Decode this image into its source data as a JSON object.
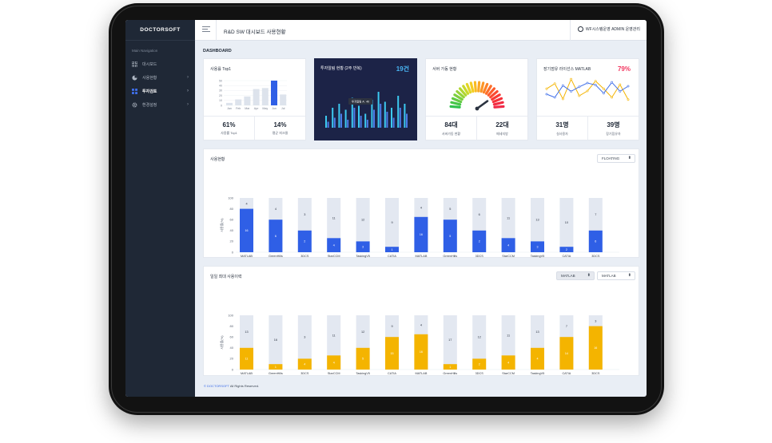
{
  "app": {
    "logo": "DOCTORSOFT",
    "page_title": "R&D SW 대시보드 사용현황",
    "user_label": "WF시스템운영 ADMIN 운영관리",
    "footer_brand": "© DOCTORSOFT",
    "footer_rest": " All Rights Reserved."
  },
  "sidebar": {
    "caption": "Main Navigation",
    "items": [
      {
        "label": "대시보드",
        "icon": "grid-icon",
        "chevron": false,
        "active": false
      },
      {
        "label": "사용현황",
        "icon": "pie-icon",
        "chevron": true,
        "active": false
      },
      {
        "label": "투자검토",
        "icon": "squares-icon",
        "chevron": true,
        "active": true
      },
      {
        "label": "환경설정",
        "icon": "gear-icon",
        "chevron": true,
        "active": false
      }
    ]
  },
  "dashboard_label": "DASHBOARD",
  "cards": {
    "top1": {
      "title": "사용률 Top1",
      "stats": [
        {
          "value": "61%",
          "label": "사용률 Top1"
        },
        {
          "value": "14%",
          "label": "평균 피크율"
        }
      ]
    },
    "invest": {
      "title": "투자알림 현황 (2주 반복)",
      "count": "19건",
      "tooltip": "투자알림 A : 40"
    },
    "server": {
      "title": "서버 가동 현황",
      "stats": [
        {
          "value": "84대",
          "label": "서버가동 현황"
        },
        {
          "value": "22대",
          "label": "메세지방"
        }
      ]
    },
    "license": {
      "title": "장기점유 라이선스 MATLAB",
      "percent": "79%",
      "stats": [
        {
          "value": "31명",
          "label": "실사용자"
        },
        {
          "value": "39명",
          "label": "장기점유자"
        }
      ]
    }
  },
  "usage_panel": {
    "title": "사용현황",
    "select": "FLOATING"
  },
  "daily_panel": {
    "title": "일일 최대 사용이력",
    "select1": "MATLAB",
    "select2": "MATLAB"
  },
  "chart_data": [
    {
      "type": "bar",
      "title": "사용률 Top1",
      "categories": [
        "Jan",
        "Feb",
        "Mar",
        "Apr",
        "May",
        "Jun",
        "Jul"
      ],
      "values": [
        5,
        12,
        18,
        33,
        35,
        50,
        22
      ],
      "ylim": [
        0,
        50
      ],
      "yticks": [
        0,
        10,
        20,
        30,
        40,
        50
      ],
      "highlight_index": 5
    },
    {
      "type": "bar",
      "title": "투자알림 현황 (2주 반복)",
      "series": [
        {
          "name": "",
          "values": [
            12,
            20,
            24,
            18,
            30,
            22,
            14,
            28,
            36,
            26,
            20,
            32,
            24
          ]
        },
        {
          "name": "",
          "values": [
            6,
            10,
            14,
            8,
            20,
            12,
            8,
            18,
            24,
            16,
            10,
            20,
            14
          ]
        }
      ]
    },
    {
      "type": "gauge",
      "title": "서버 가동 현황",
      "value_fraction": 0.8
    },
    {
      "type": "line",
      "title": "장기점유 라이선스 MATLAB",
      "series": [
        {
          "name": "",
          "values": [
            62,
            78,
            30,
            92,
            40,
            55,
            86,
            62,
            35,
            75,
            28
          ]
        },
        {
          "name": "",
          "values": [
            45,
            35,
            72,
            54,
            68,
            80,
            74,
            48,
            82,
            54,
            70
          ]
        }
      ]
    },
    {
      "type": "bar",
      "title": "사용현황",
      "ylabel": "사용률(%)",
      "ylim": [
        0,
        100
      ],
      "yticks": [
        0,
        20,
        40,
        60,
        80,
        100
      ],
      "categories": [
        "MATLAB",
        "GreenHills",
        "3DCS",
        "StarCCM",
        "TaskingV5",
        "CATIA",
        "MATLAB",
        "GreenHills",
        "3DCS",
        "StarCCM",
        "TaskingV5",
        "CATIA",
        "3DCS"
      ],
      "values": [
        80,
        60,
        40,
        26,
        20,
        10,
        65,
        60,
        40,
        26,
        20,
        10,
        40
      ],
      "value_labels": [
        "16",
        "6",
        "2",
        "4",
        "3",
        "1",
        "16",
        "5",
        "2",
        "4",
        "3",
        "2",
        "6"
      ],
      "remainder_labels": [
        "4",
        "4",
        "3",
        "11",
        "12",
        "9",
        "4",
        "5",
        "6",
        "11",
        "13",
        "10",
        "7"
      ]
    },
    {
      "type": "bar",
      "title": "일일 최대 사용이력",
      "ylabel": "사용률(%)",
      "ylim": [
        0,
        100
      ],
      "yticks": [
        0,
        20,
        40,
        60,
        80,
        100
      ],
      "categories": [
        "MATLAB",
        "GreenHills",
        "3DCS",
        "StarCCM",
        "TaskingV5",
        "CATIA",
        "MATLAB",
        "GreenHills",
        "3DCS",
        "StarCCM",
        "TaskingV5",
        "CATIA",
        "3DCS"
      ],
      "values": [
        40,
        10,
        20,
        26,
        40,
        60,
        65,
        10,
        20,
        26,
        40,
        60,
        80
      ],
      "value_labels": [
        "11",
        "1",
        "4",
        "4",
        "5",
        "15",
        "16",
        "1",
        "2",
        "4",
        "4",
        "14",
        "16"
      ],
      "remainder_labels": [
        "13",
        "16",
        "3",
        "11",
        "12",
        "9",
        "4",
        "17",
        "12",
        "11",
        "13",
        "7",
        "3"
      ]
    }
  ],
  "colors": {
    "sidebar": "#1f2836",
    "blue": "#2f5fe6",
    "orange": "#f4b400",
    "track": "#e3e8f1",
    "dark_card": "#1c2347",
    "cyan": "#3cc9f0",
    "red": "#f2355f"
  }
}
